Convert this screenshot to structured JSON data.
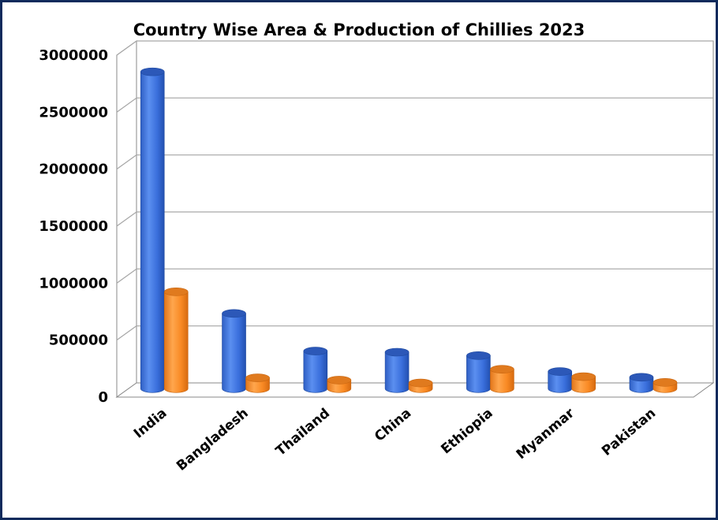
{
  "chart_data": {
    "type": "bar",
    "title": "Country Wise Area & Production of Chillies 2023",
    "xlabel": "",
    "ylabel": "",
    "categories": [
      "India",
      "Bangladesh",
      "Thailand",
      "China",
      "Ethiopia",
      "Myanmar",
      "Pakistan"
    ],
    "series": [
      {
        "values": [
          2780000,
          660000,
          330000,
          320000,
          290000,
          150000,
          100000
        ],
        "color": "#3a6fdc"
      },
      {
        "values": [
          850000,
          95000,
          75000,
          50000,
          170000,
          105000,
          55000
        ],
        "color": "#f98a24"
      }
    ],
    "ylim": [
      0,
      3000000
    ],
    "yticks": [
      "0",
      "500000",
      "1000000",
      "1500000",
      "2000000",
      "2500000",
      "3000000"
    ],
    "grid": true,
    "legend": "none",
    "style": "3d-cylinder"
  },
  "colors": {
    "border": "#0f2a5c",
    "grid": "#a6a6a6",
    "series1": "#3a6fdc",
    "series2": "#f98a24"
  }
}
